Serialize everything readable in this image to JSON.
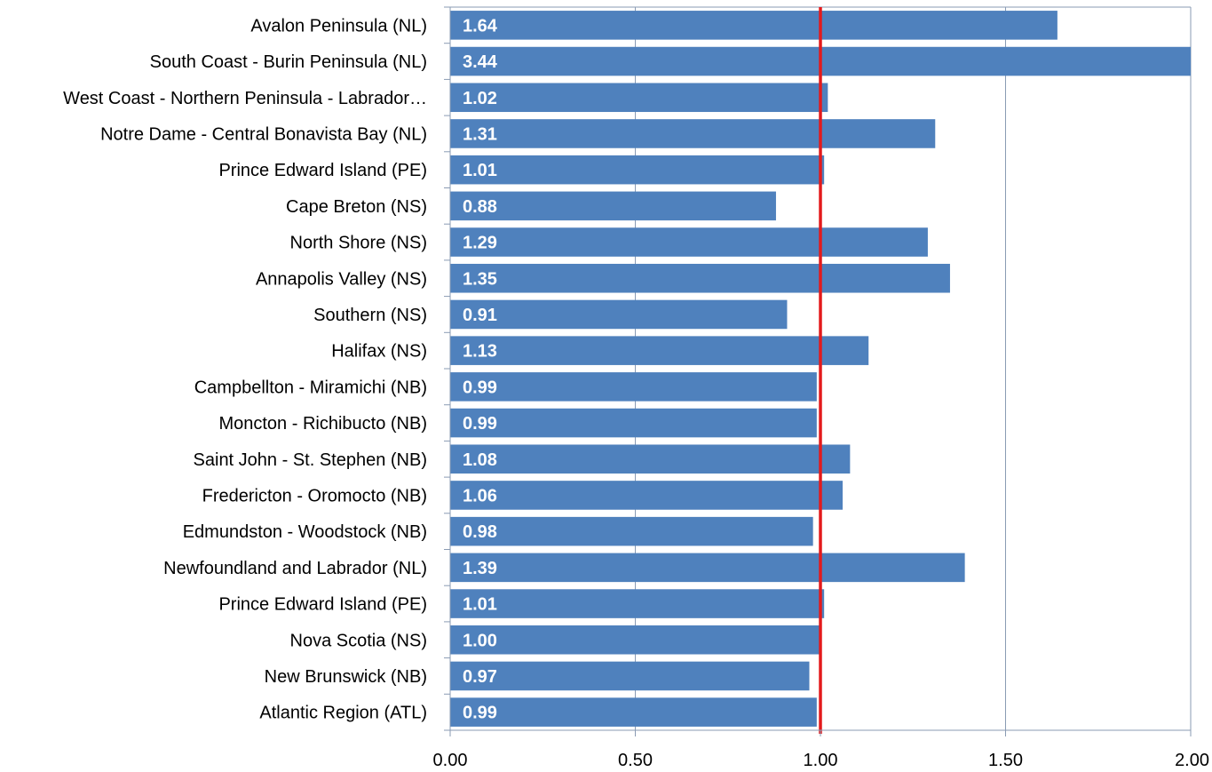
{
  "chart_data": {
    "type": "bar",
    "orientation": "horizontal",
    "categories": [
      "Avalon Peninsula (NL)",
      "South Coast - Burin Peninsula (NL)",
      "West Coast - Northern Peninsula - Labrador…",
      "Notre Dame - Central Bonavista Bay (NL)",
      "Prince Edward Island (PE)",
      "Cape Breton (NS)",
      "North Shore (NS)",
      "Annapolis Valley (NS)",
      "Southern (NS)",
      "Halifax (NS)",
      "Campbellton - Miramichi (NB)",
      "Moncton - Richibucto (NB)",
      "Saint John - St. Stephen (NB)",
      "Fredericton - Oromocto (NB)",
      "Edmundston - Woodstock (NB)",
      "Newfoundland and Labrador (NL)",
      "Prince Edward Island (PE)",
      "Nova Scotia (NS)",
      "New Brunswick (NB)",
      "Atlantic Region (ATL)"
    ],
    "values": [
      1.64,
      3.44,
      1.02,
      1.31,
      1.01,
      0.88,
      1.29,
      1.35,
      0.91,
      1.13,
      0.99,
      0.99,
      1.08,
      1.06,
      0.98,
      1.39,
      1.01,
      1.0,
      0.97,
      0.99
    ],
    "value_labels": [
      "1.64",
      "3.44",
      "1.02",
      "1.31",
      "1.01",
      "0.88",
      "1.29",
      "1.35",
      "0.91",
      "1.13",
      "0.99",
      "0.99",
      "1.08",
      "1.06",
      "0.98",
      "1.39",
      "1.01",
      "1.00",
      "0.97",
      "0.99"
    ],
    "xlim": [
      0,
      2
    ],
    "xticks": [
      0,
      0.5,
      1,
      1.5,
      2
    ],
    "xtick_labels": [
      "0.00",
      "0.50",
      "1.00",
      "1.50",
      "2.00"
    ],
    "reference_line": 1.0,
    "grid": "vertical",
    "title": "",
    "xlabel": "",
    "ylabel": "",
    "colors": {
      "bar": "#4f81bd",
      "reference_line": "#e31a1c",
      "grid": "#8a9bb3",
      "axis": "#8a9bb3"
    }
  }
}
